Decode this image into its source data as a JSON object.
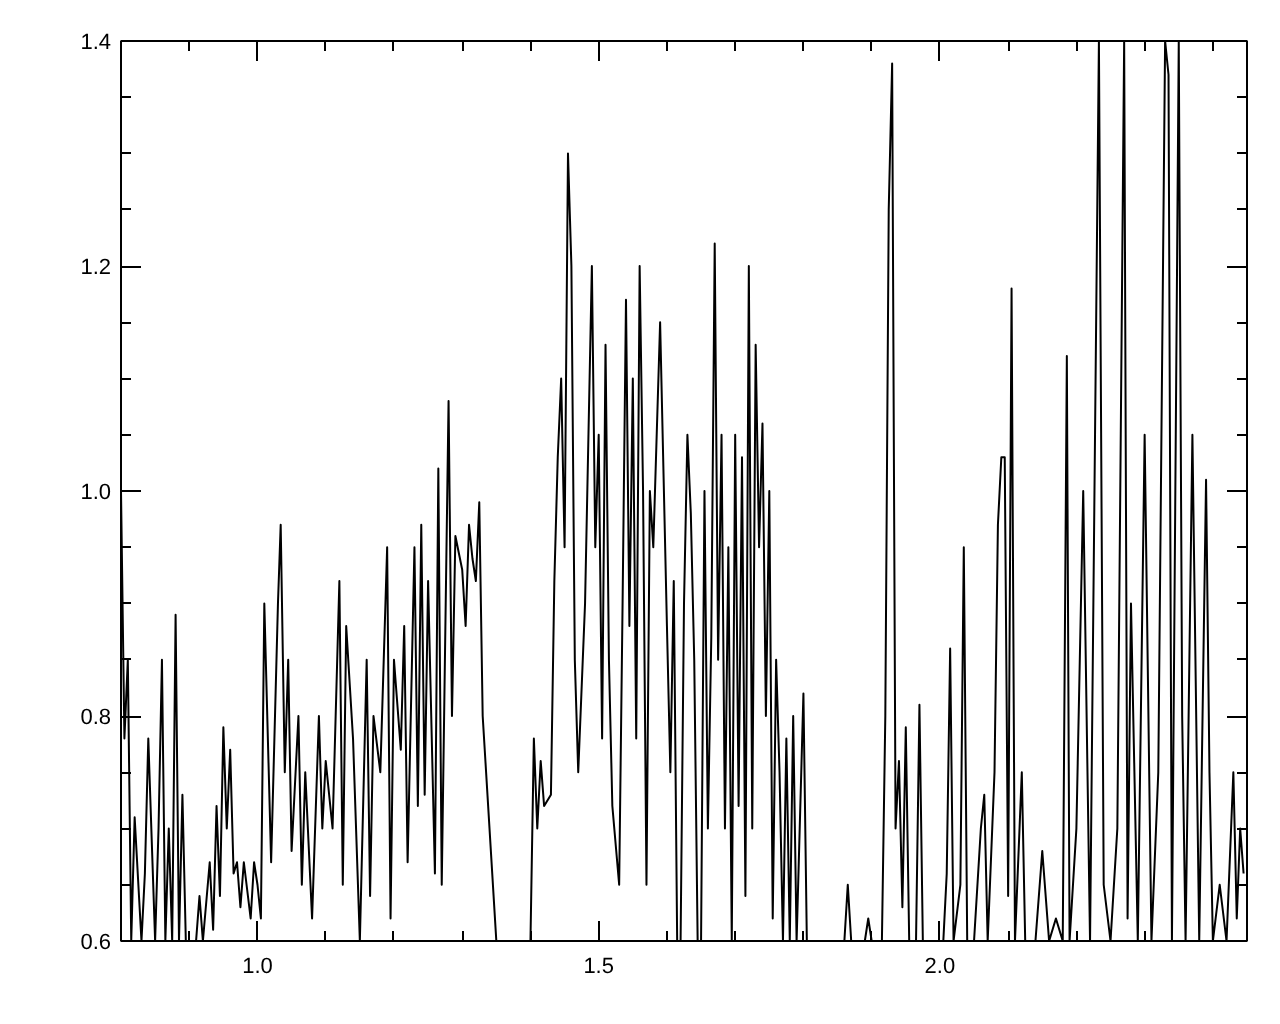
{
  "chart_data": {
    "type": "line",
    "color": "#000000",
    "x": [
      0.8,
      0.805,
      0.81,
      0.815,
      0.82,
      0.83,
      0.835,
      0.84,
      0.85,
      0.855,
      0.86,
      0.865,
      0.87,
      0.875,
      0.88,
      0.885,
      0.89,
      0.895,
      0.9,
      0.91,
      0.915,
      0.92,
      0.93,
      0.935,
      0.94,
      0.945,
      0.95,
      0.955,
      0.96,
      0.965,
      0.97,
      0.975,
      0.98,
      0.99,
      0.995,
      1.0,
      1.005,
      1.01,
      1.02,
      1.03,
      1.034,
      1.04,
      1.045,
      1.05,
      1.06,
      1.065,
      1.07,
      1.08,
      1.09,
      1.095,
      1.1,
      1.11,
      1.12,
      1.125,
      1.13,
      1.14,
      1.15,
      1.16,
      1.165,
      1.17,
      1.18,
      1.19,
      1.195,
      1.2,
      1.21,
      1.215,
      1.22,
      1.23,
      1.235,
      1.24,
      1.245,
      1.25,
      1.26,
      1.265,
      1.27,
      1.28,
      1.285,
      1.29,
      1.3,
      1.305,
      1.31,
      1.315,
      1.32,
      1.325,
      1.33,
      1.35,
      1.37,
      1.4,
      1.405,
      1.41,
      1.415,
      1.42,
      1.43,
      1.435,
      1.44,
      1.445,
      1.45,
      1.455,
      1.46,
      1.465,
      1.47,
      1.48,
      1.49,
      1.495,
      1.5,
      1.505,
      1.51,
      1.515,
      1.52,
      1.53,
      1.535,
      1.54,
      1.545,
      1.55,
      1.555,
      1.56,
      1.565,
      1.57,
      1.575,
      1.58,
      1.59,
      1.6,
      1.605,
      1.61,
      1.615,
      1.62,
      1.625,
      1.63,
      1.635,
      1.64,
      1.645,
      1.65,
      1.655,
      1.66,
      1.665,
      1.67,
      1.675,
      1.68,
      1.685,
      1.69,
      1.695,
      1.7,
      1.705,
      1.71,
      1.715,
      1.72,
      1.725,
      1.73,
      1.735,
      1.74,
      1.745,
      1.75,
      1.755,
      1.76,
      1.765,
      1.77,
      1.775,
      1.78,
      1.785,
      1.79,
      1.8,
      1.805,
      1.83,
      1.86,
      1.865,
      1.87,
      1.88,
      1.89,
      1.895,
      1.9,
      1.91,
      1.915,
      1.92,
      1.925,
      1.93,
      1.935,
      1.94,
      1.945,
      1.95,
      1.955,
      1.96,
      1.965,
      1.97,
      1.975,
      1.99,
      2.005,
      2.01,
      2.015,
      2.02,
      2.03,
      2.035,
      2.04,
      2.05,
      2.06,
      2.065,
      2.07,
      2.08,
      2.085,
      2.09,
      2.095,
      2.1,
      2.105,
      2.11,
      2.12,
      2.125,
      2.14,
      2.15,
      2.16,
      2.17,
      2.18,
      2.186,
      2.19,
      2.2,
      2.21,
      2.22,
      2.233,
      2.24,
      2.25,
      2.26,
      2.27,
      2.275,
      2.28,
      2.29,
      2.3,
      2.31,
      2.32,
      2.33,
      2.335,
      2.34,
      2.35,
      2.355,
      2.36,
      2.37,
      2.38,
      2.39,
      2.395,
      2.4,
      2.41,
      2.42,
      2.43,
      2.435,
      2.44,
      2.445
    ],
    "values": [
      1.0,
      0.78,
      0.85,
      0.6,
      0.71,
      0.6,
      0.66,
      0.78,
      0.6,
      0.7,
      0.85,
      0.6,
      0.7,
      0.6,
      0.89,
      0.6,
      0.73,
      0.6,
      null,
      0.6,
      0.64,
      0.6,
      0.67,
      0.61,
      0.72,
      0.64,
      0.79,
      0.7,
      0.77,
      0.66,
      0.67,
      0.63,
      0.67,
      0.62,
      0.67,
      0.65,
      0.62,
      0.9,
      0.67,
      0.9,
      0.97,
      0.75,
      0.85,
      0.68,
      0.8,
      0.65,
      0.75,
      0.62,
      0.8,
      0.7,
      0.76,
      0.7,
      0.92,
      0.65,
      0.88,
      0.78,
      0.6,
      0.85,
      0.64,
      0.8,
      0.75,
      0.95,
      0.62,
      0.85,
      0.77,
      0.88,
      0.67,
      0.95,
      0.72,
      0.97,
      0.73,
      0.92,
      0.66,
      1.02,
      0.65,
      1.08,
      0.8,
      0.96,
      0.93,
      0.88,
      0.97,
      0.94,
      0.92,
      0.99,
      0.8,
      0.6,
      null,
      0.6,
      0.78,
      0.7,
      0.76,
      0.72,
      0.73,
      0.92,
      1.03,
      1.1,
      0.95,
      1.3,
      1.2,
      0.85,
      0.75,
      0.9,
      1.2,
      0.95,
      1.05,
      0.78,
      1.13,
      0.85,
      0.72,
      0.65,
      0.9,
      1.17,
      0.88,
      1.1,
      0.78,
      1.2,
      1.0,
      0.65,
      1.0,
      0.95,
      1.15,
      0.88,
      0.75,
      0.92,
      0.6,
      0.6,
      0.9,
      1.05,
      0.98,
      0.85,
      0.6,
      0.6,
      1.0,
      0.7,
      0.87,
      1.22,
      0.85,
      1.05,
      0.7,
      0.95,
      0.6,
      1.05,
      0.72,
      1.03,
      0.64,
      1.2,
      0.7,
      1.13,
      0.95,
      1.06,
      0.8,
      1.0,
      0.62,
      0.85,
      0.75,
      0.6,
      0.78,
      0.6,
      0.8,
      0.6,
      0.82,
      0.6,
      null,
      0.6,
      0.65,
      0.6,
      null,
      0.6,
      0.62,
      0.6,
      null,
      0.6,
      0.8,
      1.25,
      1.38,
      0.7,
      0.76,
      0.63,
      0.79,
      0.6,
      null,
      0.6,
      0.81,
      0.6,
      null,
      0.6,
      0.66,
      0.86,
      0.6,
      0.65,
      0.95,
      0.6,
      0.6,
      0.7,
      0.73,
      0.6,
      0.75,
      0.97,
      1.03,
      1.03,
      0.64,
      1.18,
      0.6,
      0.75,
      0.6,
      0.6,
      0.68,
      0.6,
      0.62,
      0.6,
      1.12,
      0.6,
      0.7,
      1.0,
      0.6,
      1.4,
      0.65,
      0.6,
      0.7,
      1.4,
      0.62,
      0.9,
      0.6,
      1.05,
      0.6,
      0.75,
      1.4,
      1.37,
      0.6,
      1.4,
      0.8,
      0.6,
      1.05,
      0.6,
      1.01,
      0.75,
      0.6,
      0.65,
      0.6,
      0.75,
      0.62,
      0.7,
      0.66
    ],
    "xlim": [
      0.8,
      2.45
    ],
    "ylim": [
      0.6,
      1.4
    ],
    "xticks": [
      {
        "value": 1.0,
        "label": "1.0"
      },
      {
        "value": 1.5,
        "label": "1.5"
      },
      {
        "value": 2.0,
        "label": "2.0"
      }
    ],
    "yticks": [
      {
        "value": 0.6,
        "label": "0.6"
      },
      {
        "value": 0.8,
        "label": "0.8"
      },
      {
        "value": 1.0,
        "label": "1.0"
      },
      {
        "value": 1.2,
        "label": "1.2"
      },
      {
        "value": 1.4,
        "label": "1.4"
      }
    ],
    "grid": false,
    "marker": "none",
    "line_style": "solid"
  }
}
